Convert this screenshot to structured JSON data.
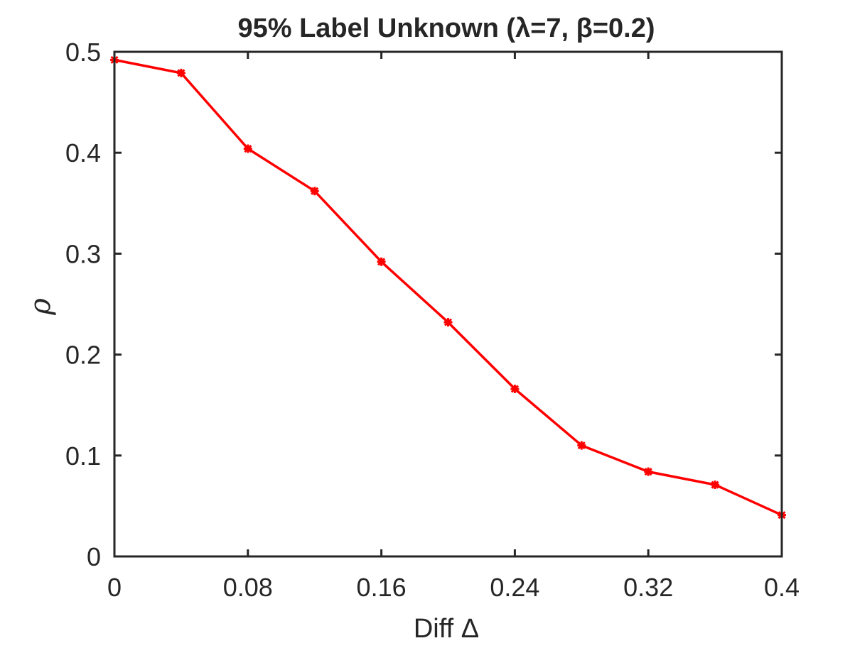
{
  "chart_data": {
    "type": "line",
    "title": "95% Label Unknown (λ=7, β=0.2)",
    "xlabel": "Diff Δ",
    "ylabel": "ρ",
    "xlim": [
      0,
      0.4
    ],
    "ylim": [
      0,
      0.5
    ],
    "x_ticks": [
      0,
      0.08,
      0.16,
      0.24,
      0.32,
      0.4
    ],
    "x_tick_labels": [
      "0",
      "0.08",
      "0.16",
      "0.24",
      "0.32",
      "0.4"
    ],
    "y_ticks": [
      0,
      0.1,
      0.2,
      0.3,
      0.4,
      0.5
    ],
    "y_tick_labels": [
      "0",
      "0.1",
      "0.2",
      "0.3",
      "0.4",
      "0.5"
    ],
    "grid": false,
    "series": [
      {
        "color": "#ff0000",
        "marker": "asterisk",
        "x": [
          0,
          0.04,
          0.08,
          0.12,
          0.16,
          0.2,
          0.24,
          0.28,
          0.32,
          0.36,
          0.4
        ],
        "y": [
          0.492,
          0.479,
          0.404,
          0.362,
          0.292,
          0.232,
          0.166,
          0.11,
          0.084,
          0.071,
          0.041
        ]
      }
    ]
  }
}
